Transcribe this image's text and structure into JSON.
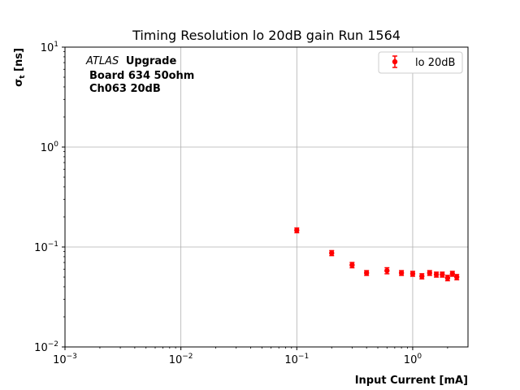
{
  "chart_data": {
    "type": "scatter",
    "title": "Timing Resolution lo 20dB gain Run 1564",
    "xlabel": "Input Current [mA]",
    "ylabel_base": "σ",
    "ylabel_sub": "t",
    "ylabel_unit": " [ns]",
    "x_scale": "log",
    "y_scale": "log",
    "xlim": [
      0.001,
      3
    ],
    "ylim": [
      0.01,
      10
    ],
    "grid": true,
    "legend_position": "top-right",
    "x_ticks": [
      {
        "base": "10",
        "exp": "−3",
        "value": 0.001
      },
      {
        "base": "10",
        "exp": "−2",
        "value": 0.01
      },
      {
        "base": "10",
        "exp": "−1",
        "value": 0.1
      },
      {
        "base": "10",
        "exp": "0",
        "value": 1
      }
    ],
    "y_ticks": [
      {
        "base": "10",
        "exp": "−2",
        "value": 0.01
      },
      {
        "base": "10",
        "exp": "−1",
        "value": 0.1
      },
      {
        "base": "10",
        "exp": "0",
        "value": 1
      },
      {
        "base": "10",
        "exp": "1",
        "value": 10
      }
    ],
    "annotation": {
      "atlas": "ATLAS",
      "upgrade": "Upgrade",
      "line2": "Board 634 50ohm",
      "line3": "Ch063 20dB"
    },
    "series": [
      {
        "name": "lo 20dB",
        "color": "#ff0000",
        "x": [
          0.1,
          0.2,
          0.3,
          0.4,
          0.6,
          0.8,
          1.0,
          1.2,
          1.4,
          1.6,
          1.8,
          2.0,
          2.2,
          2.4
        ],
        "y": [
          0.147,
          0.087,
          0.066,
          0.055,
          0.058,
          0.055,
          0.054,
          0.051,
          0.055,
          0.053,
          0.053,
          0.049,
          0.054,
          0.05
        ],
        "yerr": [
          0.008,
          0.005,
          0.004,
          0.003,
          0.004,
          0.003,
          0.003,
          0.003,
          0.003,
          0.003,
          0.003,
          0.003,
          0.003,
          0.003
        ]
      }
    ]
  }
}
